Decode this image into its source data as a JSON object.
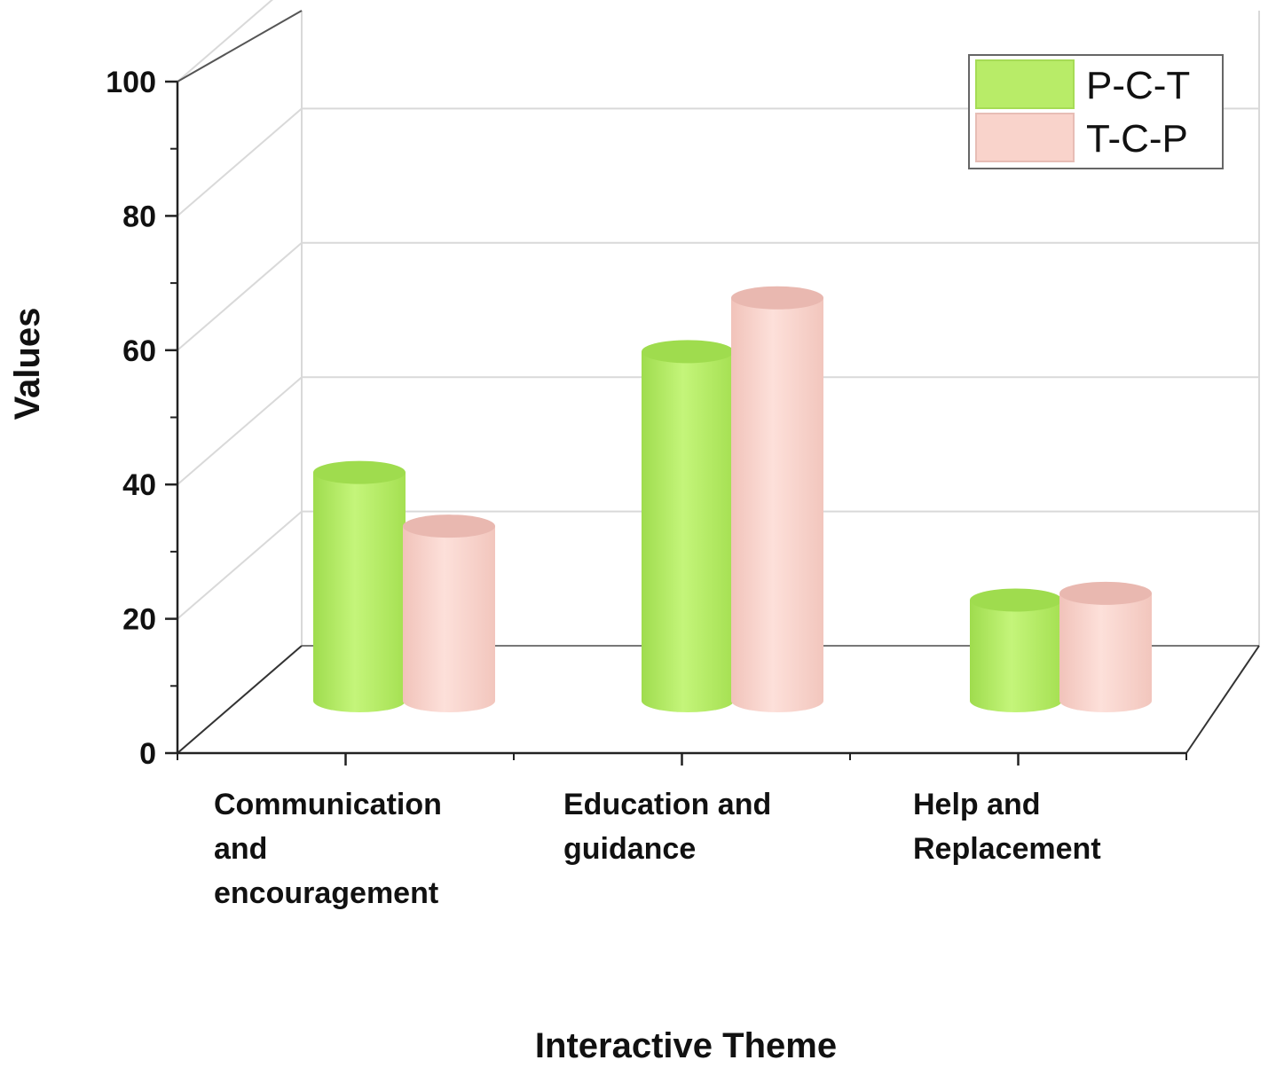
{
  "chart_data": {
    "type": "bar",
    "categories": [
      [
        "Communication",
        "and",
        "encouragement"
      ],
      [
        "Education and",
        "guidance"
      ],
      [
        "Help and",
        "Replacement"
      ]
    ],
    "series": [
      {
        "name": "P-C-T",
        "values": [
          34,
          52,
          15
        ],
        "color": "#b8ec68",
        "top_color": "#9fdc4e"
      },
      {
        "name": "T-C-P",
        "values": [
          26,
          60,
          16
        ],
        "color": "#f9d3cb",
        "top_color": "#e9b8b0"
      }
    ],
    "xlabel": "Interactive Theme",
    "ylabel": "Values",
    "ylim": [
      0,
      100
    ],
    "yticks": [
      "0",
      "20",
      "40",
      "60",
      "80",
      "100"
    ],
    "grid": true,
    "legend_position": "top-right",
    "style": "3d-cylinder"
  }
}
